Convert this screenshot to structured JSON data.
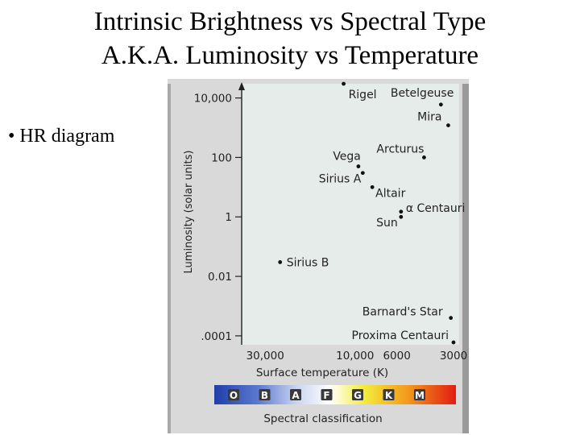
{
  "slide": {
    "title_line1": "Intrinsic Brightness vs Spectral Type",
    "title_line2": "A.K.A. Luminosity vs Temperature",
    "bullet": "HR diagram"
  },
  "chart_data": {
    "type": "scatter",
    "title": "",
    "xlabel": "Surface temperature (K)",
    "ylabel": "Luminosity (solar units)",
    "x_scale": "log-reversed",
    "y_scale": "log",
    "xlim": [
      40000,
      2800
    ],
    "ylim": [
      5e-05,
      30000
    ],
    "x_ticks": [
      {
        "value": 30000,
        "label": "30,000"
      },
      {
        "value": 10000,
        "label": "10,000"
      },
      {
        "value": 6000,
        "label": "6000"
      },
      {
        "value": 3000,
        "label": "3000"
      }
    ],
    "y_ticks": [
      {
        "value": 10000,
        "label": "10,000"
      },
      {
        "value": 100,
        "label": "100"
      },
      {
        "value": 1,
        "label": "1"
      },
      {
        "value": 0.01,
        "label": "0.01"
      },
      {
        "value": 0.0001,
        "label": ".0001"
      }
    ],
    "points": [
      {
        "name": "Rigel",
        "label": "Rigel",
        "x": 11500,
        "y": 30000
      },
      {
        "name": "Betelgeuse",
        "label": "Betelgeuse",
        "x": 3500,
        "y": 6000
      },
      {
        "name": "Mira",
        "label": "Mira",
        "x": 3200,
        "y": 1200
      },
      {
        "name": "Vega",
        "label": "Vega",
        "x": 9600,
        "y": 50
      },
      {
        "name": "Arcturus",
        "label": "Arcturus",
        "x": 4300,
        "y": 100
      },
      {
        "name": "Sirius A",
        "label": "Sirius A",
        "x": 9100,
        "y": 30
      },
      {
        "name": "Altair",
        "label": "Altair",
        "x": 8100,
        "y": 10
      },
      {
        "name": "Alpha Centauri",
        "label": "α Centauri",
        "x": 5700,
        "y": 1.5
      },
      {
        "name": "Sun",
        "label": "Sun",
        "x": 5700,
        "y": 1
      },
      {
        "name": "Sirius B",
        "label": "Sirius B",
        "x": 25000,
        "y": 0.03
      },
      {
        "name": "Barnard's Star",
        "label": "Barnard's Star",
        "x": 3100,
        "y": 0.0004
      },
      {
        "name": "Proxima Centauri",
        "label": "Proxima Centauri",
        "x": 3000,
        "y": 6e-05
      }
    ],
    "spectral_bar": {
      "label": "Spectral classification",
      "classes": [
        "O",
        "B",
        "A",
        "F",
        "G",
        "K",
        "M"
      ]
    },
    "colors": {
      "plot_background": "#e6ecea",
      "panel_background": "#d9d9d9",
      "text": "#222222"
    }
  }
}
